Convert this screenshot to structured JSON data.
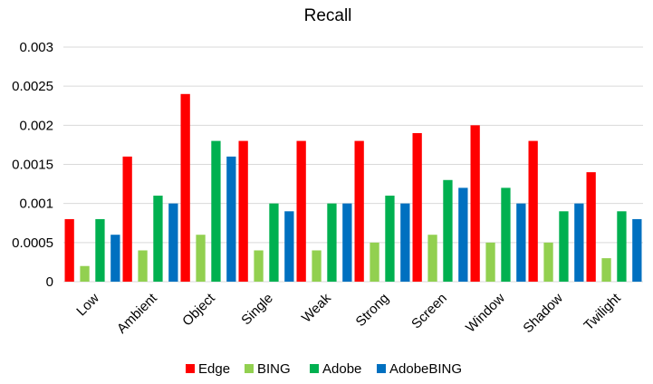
{
  "chart_data": {
    "type": "bar",
    "title": "Recall",
    "xlabel": "",
    "ylabel": "",
    "categories": [
      "Low",
      "Ambient",
      "Object",
      "Single",
      "Weak",
      "Strong",
      "Screen",
      "Window",
      "Shadow",
      "Twilight"
    ],
    "series": [
      {
        "name": "Edge",
        "color": "#ff0000",
        "values": [
          0.0008,
          0.0016,
          0.0024,
          0.0018,
          0.0018,
          0.0018,
          0.0019,
          0.002,
          0.0018,
          0.0014
        ]
      },
      {
        "name": "BING",
        "color": "#92d050",
        "values": [
          0.0002,
          0.0004,
          0.0006,
          0.0004,
          0.0004,
          0.0005,
          0.0006,
          0.0005,
          0.0005,
          0.0003
        ]
      },
      {
        "name": "Adobe",
        "color": "#00b050",
        "values": [
          0.0008,
          0.0011,
          0.0018,
          0.001,
          0.001,
          0.0011,
          0.0013,
          0.0012,
          0.0009,
          0.0009
        ]
      },
      {
        "name": "AdobeBING",
        "color": "#0070c0",
        "values": [
          0.0006,
          0.001,
          0.0016,
          0.0009,
          0.001,
          0.001,
          0.0012,
          0.001,
          0.001,
          0.0008
        ]
      }
    ],
    "ylim": [
      0,
      0.003
    ],
    "y_ticks": [
      "0",
      "0.0005",
      "0.001",
      "0.0015",
      "0.002",
      "0.0025",
      "0.003"
    ],
    "y_tick_values": [
      0,
      0.0005,
      0.001,
      0.0015,
      0.002,
      0.0025,
      0.003
    ],
    "grid": true,
    "legend_position": "bottom"
  }
}
